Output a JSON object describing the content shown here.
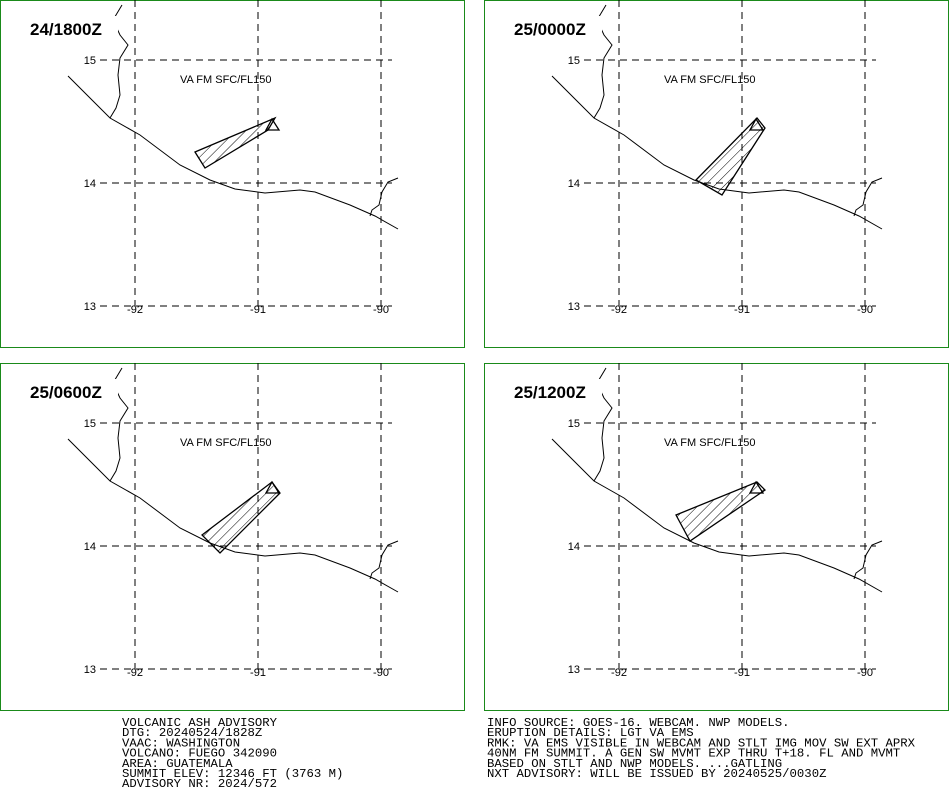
{
  "panels": [
    {
      "time": "24/1800Z",
      "level": "VA FM SFC/FL150"
    },
    {
      "time": "25/0000Z",
      "level": "VA FM SFC/FL150"
    },
    {
      "time": "25/0600Z",
      "level": "VA FM SFC/FL150"
    },
    {
      "time": "25/1200Z",
      "level": "VA FM SFC/FL150"
    }
  ],
  "grid": {
    "lat_labels": [
      "15",
      "14",
      "13"
    ],
    "lon_labels": [
      "-92",
      "-91",
      "-90"
    ]
  },
  "advisory": {
    "left_lines": [
      "VOLCANIC ASH ADVISORY",
      "DTG: 20240524/1828Z",
      "VAAC: WASHINGTON",
      "VOLCANO: FUEGO 342090",
      "AREA: GUATEMALA",
      "SUMMIT ELEV: 12346 FT (3763 M)",
      "ADVISORY NR: 2024/572"
    ],
    "right_lines": [
      "INFO SOURCE: GOES-16. WEBCAM. NWP MODELS.",
      "ERUPTION DETAILS: LGT VA EMS",
      "RMK: VA EMS VISIBLE IN WEBCAM AND STLT IMG MOV SW EXT APRX",
      "40NM FM SUMMIT. A GEN SW MVMT EXP THRU T+18. FL AND MVMT",
      "BASED ON STLT AND NWP MODELS. ...GATLING",
      "NXT ADVISORY: WILL BE ISSUED BY 20240525/0030Z"
    ]
  }
}
